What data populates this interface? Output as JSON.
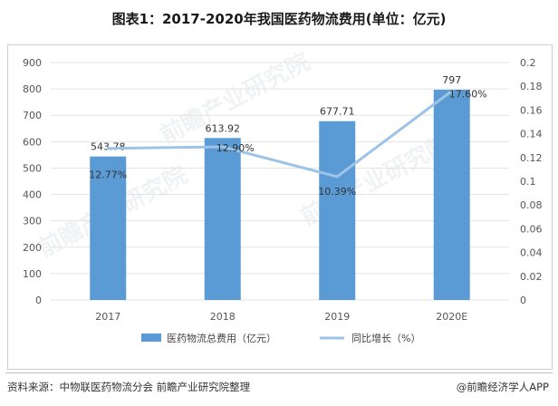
{
  "title": "图表1：2017-2020年我国医药物流费用(单位：亿元)",
  "source": "资料来源：中物联医药物流分会 前瞻产业研究院整理",
  "brand": "@前瞻经济学人APP",
  "watermark": "前瞻产业研究院",
  "chart_data": {
    "type": "bar",
    "categories": [
      "2017",
      "2018",
      "2019",
      "2020E"
    ],
    "series": [
      {
        "name": "医药物流总费用（亿元）",
        "kind": "bar",
        "axis": "left",
        "values": [
          543.78,
          613.92,
          677.71,
          797
        ],
        "labels": [
          "543.78",
          "613.92",
          "677.71",
          "797"
        ]
      },
      {
        "name": "同比增长（%）",
        "kind": "line",
        "axis": "right",
        "values": [
          0.1277,
          0.129,
          0.1039,
          0.176
        ],
        "labels": [
          "12.77%",
          "12.90%",
          "10.39%",
          "17.60%"
        ]
      }
    ],
    "y_left": {
      "min": 0,
      "max": 900,
      "step": 100,
      "ticks": [
        "0",
        "100",
        "200",
        "300",
        "400",
        "500",
        "600",
        "700",
        "800",
        "900"
      ]
    },
    "y_right": {
      "min": 0,
      "max": 0.2,
      "step": 0.02,
      "ticks": [
        "0",
        "0.02",
        "0.04",
        "0.06",
        "0.08",
        "0.1",
        "0.12",
        "0.14",
        "0.16",
        "0.18",
        "0.2"
      ]
    },
    "grid": true,
    "legend": "bottom",
    "colors": {
      "bar": "#5b9bd5",
      "line": "#9dc3e6",
      "grid": "#e3e3e3"
    }
  }
}
